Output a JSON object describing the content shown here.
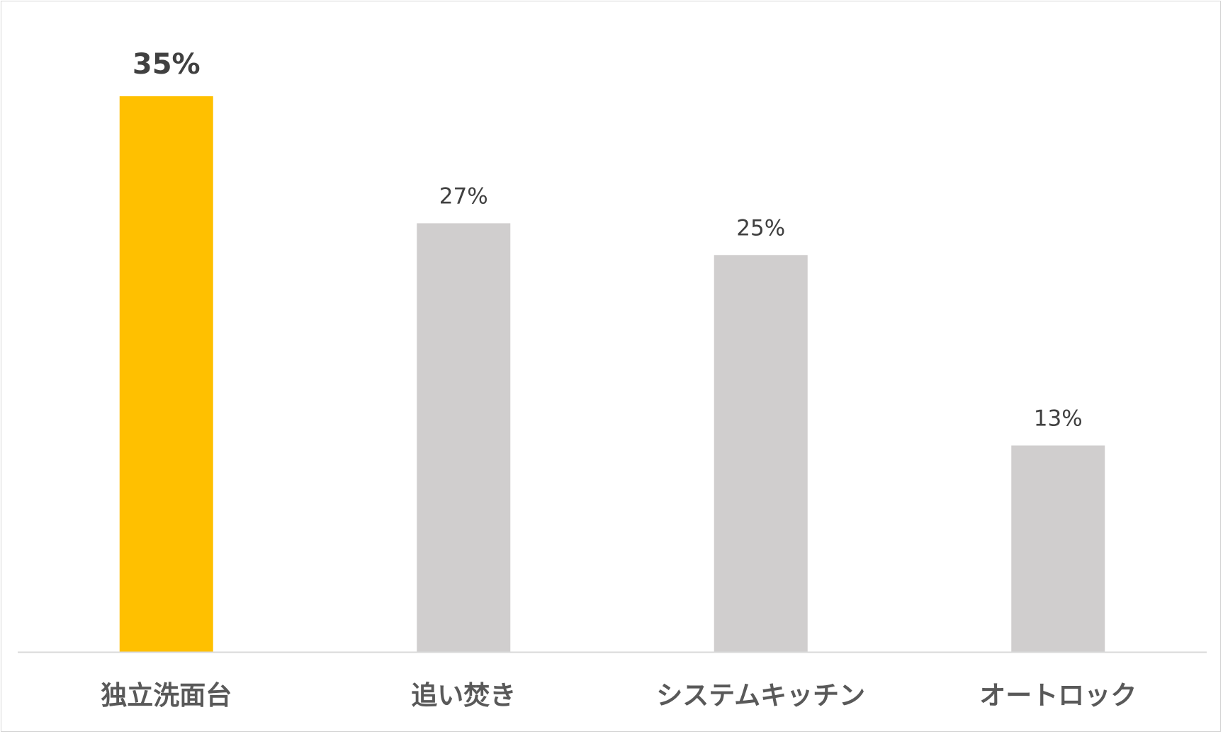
{
  "chart_data": {
    "type": "bar",
    "categories": [
      "独立洗面台",
      "追い焚き",
      "システムキッチン",
      "オートロック"
    ],
    "values": [
      35,
      27,
      25,
      13
    ],
    "value_labels": [
      "35%",
      "27%",
      "25%",
      "13%"
    ],
    "unit": "%",
    "ylim": [
      0,
      35
    ],
    "grid": false,
    "legend": "none",
    "highlight_index": 0,
    "colors": {
      "highlight": "#FFC000",
      "default": "#D0CECE",
      "axis": "#D9D9D9",
      "value_text": "#404040",
      "category_text": "#595959"
    }
  }
}
